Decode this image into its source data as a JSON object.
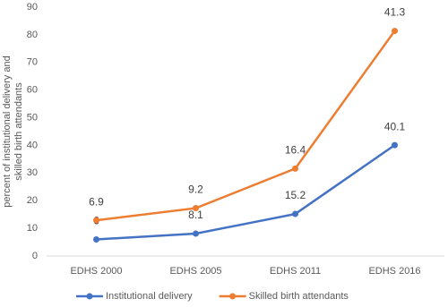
{
  "chart_data": {
    "type": "line",
    "stacked": true,
    "y_label": "percent of institutional delivery and skilled birth attendants",
    "categories": [
      "EDHS 2000",
      "EDHS 2005",
      "EDHS 2011",
      "EDHS 2016"
    ],
    "series": [
      {
        "name": "Institutional delivery",
        "color": "#4472c4",
        "values": [
          6,
          8.1,
          15.2,
          40.1
        ]
      },
      {
        "name": "Skilled birth attendants",
        "color": "#ed7d31",
        "values": [
          6.9,
          9.2,
          16.4,
          41.3
        ]
      }
    ],
    "ylim": [
      0,
      90
    ],
    "yticks": [
      0,
      10,
      20,
      30,
      40,
      50,
      60,
      70,
      80,
      90
    ],
    "grid": false,
    "legend": "bottom"
  }
}
